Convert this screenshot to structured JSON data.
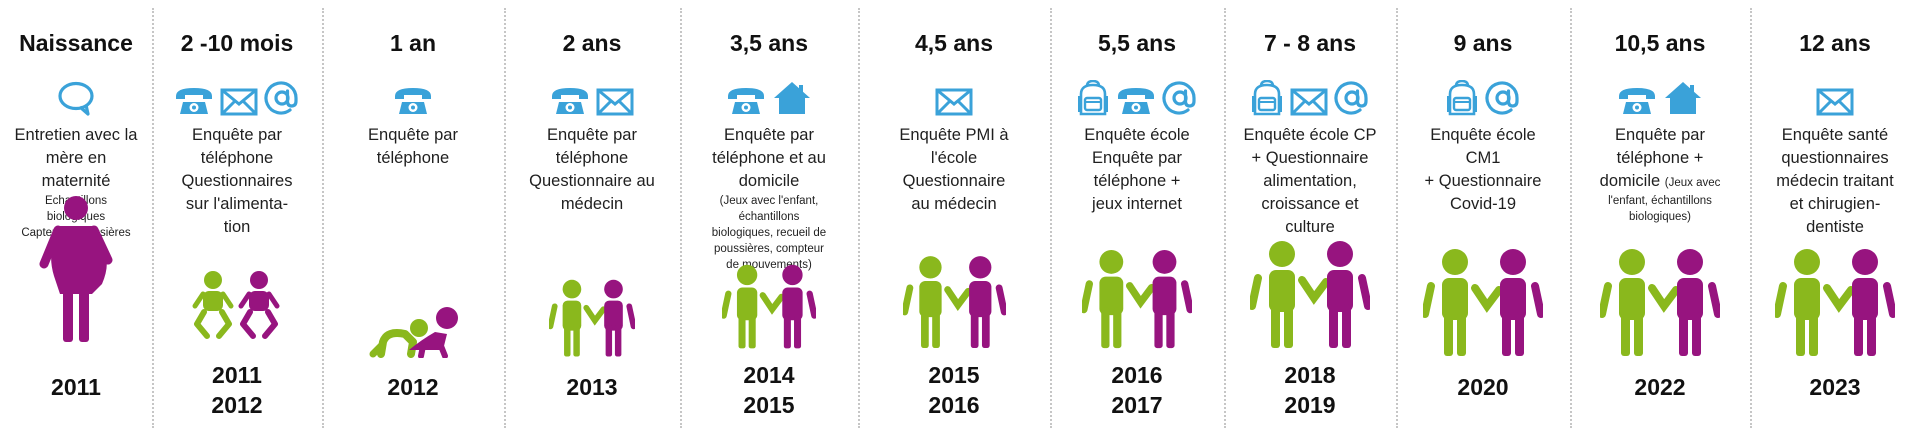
{
  "colors": {
    "blue": "#3aa2d9",
    "green": "#8ab81d",
    "purple": "#97147f",
    "text": "#1a1a1a"
  },
  "stages": [
    {
      "id": "naissance",
      "age": "Naissance",
      "icons": [
        "speech-bubble-icon"
      ],
      "description": [
        "Entretien avec la",
        "mère en",
        "maternité"
      ],
      "note": [
        "Echantillons",
        "biologiques",
        "Capteur à poussières"
      ],
      "figure": "pregnant-woman",
      "year": [
        "2011"
      ]
    },
    {
      "id": "2-10-mois",
      "age": "2 -10 mois",
      "icons": [
        "telephone-icon",
        "envelope-icon",
        "at-sign-icon"
      ],
      "description": [
        "Enquête par",
        "téléphone",
        "Questionnaires",
        "sur l'alimenta-",
        "tion"
      ],
      "note": [],
      "figure": "babies",
      "year": [
        "2011",
        "2012"
      ]
    },
    {
      "id": "1-an",
      "age": "1 an",
      "icons": [
        "telephone-icon"
      ],
      "description": [
        "Enquête par",
        "téléphone"
      ],
      "note": [],
      "figure": "crawling-baby",
      "year": [
        "2012"
      ]
    },
    {
      "id": "2-ans",
      "age": "2 ans",
      "icons": [
        "telephone-icon",
        "envelope-icon"
      ],
      "description": [
        "Enquête par",
        "téléphone",
        "Questionnaire au",
        "médecin"
      ],
      "note": [],
      "figure": "toddlers",
      "year": [
        "2013"
      ]
    },
    {
      "id": "3-5-ans",
      "age": "3,5 ans",
      "icons": [
        "telephone-icon",
        "house-icon"
      ],
      "description": [
        "Enquête par",
        "téléphone et au",
        "domicile"
      ],
      "note": [
        "(Jeux avec l'enfant,",
        "échantillons",
        "biologiques, recueil de",
        "poussières, compteur",
        "de mouvements)"
      ],
      "figure": "children",
      "year": [
        "2014",
        "2015"
      ]
    },
    {
      "id": "4-5-ans",
      "age": "4,5 ans",
      "icons": [
        "envelope-icon"
      ],
      "description": [
        "Enquête PMI à",
        "l'école",
        "Questionnaire",
        "au médecin"
      ],
      "note": [],
      "figure": "children",
      "year": [
        "2015",
        "2016"
      ]
    },
    {
      "id": "5-5-ans",
      "age": "5,5 ans",
      "icons": [
        "backpack-icon",
        "telephone-icon",
        "at-sign-icon"
      ],
      "description": [
        "Enquête école",
        "Enquête par",
        "téléphone +",
        "jeux internet"
      ],
      "note": [],
      "figure": "children",
      "year": [
        "2016",
        "2017"
      ]
    },
    {
      "id": "7-8-ans",
      "age": "7 - 8 ans",
      "icons": [
        "backpack-icon",
        "envelope-icon",
        "at-sign-icon"
      ],
      "description": [
        "Enquête école CP",
        "+ Questionnaire",
        "alimentation,",
        "croissance et",
        "culture"
      ],
      "note": [],
      "figure": "children",
      "year": [
        "2018",
        "2019"
      ]
    },
    {
      "id": "9-ans",
      "age": "9 ans",
      "icons": [
        "backpack-icon",
        "at-sign-icon"
      ],
      "description": [
        "Enquête école",
        "CM1",
        "+ Questionnaire",
        "Covid-19"
      ],
      "note": [],
      "figure": "children",
      "year": [
        "2020"
      ]
    },
    {
      "id": "10-5-ans",
      "age": "10,5 ans",
      "icons": [
        "telephone-icon",
        "house-icon"
      ],
      "description": [
        "Enquête par",
        "téléphone +"
      ],
      "description_inline": {
        "text": "domicile",
        "note": "(Jeux avec"
      },
      "note": [
        "l'enfant, échantillons",
        "biologiques)"
      ],
      "figure": "children",
      "year": [
        "2022"
      ]
    },
    {
      "id": "12-ans",
      "age": "12 ans",
      "icons": [
        "envelope-icon"
      ],
      "description": [
        "Enquête santé",
        "questionnaires",
        "médecin traitant",
        "et chirugien-",
        "dentiste"
      ],
      "note": [],
      "figure": "children",
      "year": [
        "2023"
      ]
    }
  ]
}
